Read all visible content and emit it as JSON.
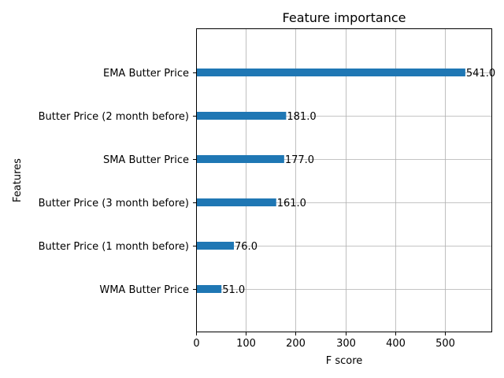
{
  "chart_data": {
    "type": "bar",
    "orientation": "horizontal",
    "title": "Feature importance",
    "xlabel": "F score",
    "ylabel": "Features",
    "categories": [
      "WMA Butter Price",
      "Butter Price (1 month before)",
      "Butter Price (3 month before)",
      "SMA Butter Price",
      "Butter Price (2 month before)",
      "EMA Butter Price"
    ],
    "values": [
      51.0,
      76.0,
      161.0,
      177.0,
      181.0,
      541.0
    ],
    "value_labels": [
      "51.0",
      "76.0",
      "161.0",
      "177.0",
      "181.0",
      "541.0"
    ],
    "xticks": [
      0,
      100,
      200,
      300,
      400,
      500
    ],
    "xtick_labels": [
      "0",
      "100",
      "200",
      "300",
      "400",
      "500"
    ],
    "xlim": [
      0,
      595
    ],
    "grid": true,
    "bar_color": "#1f77b4",
    "grid_color": "#b0b0b0"
  }
}
